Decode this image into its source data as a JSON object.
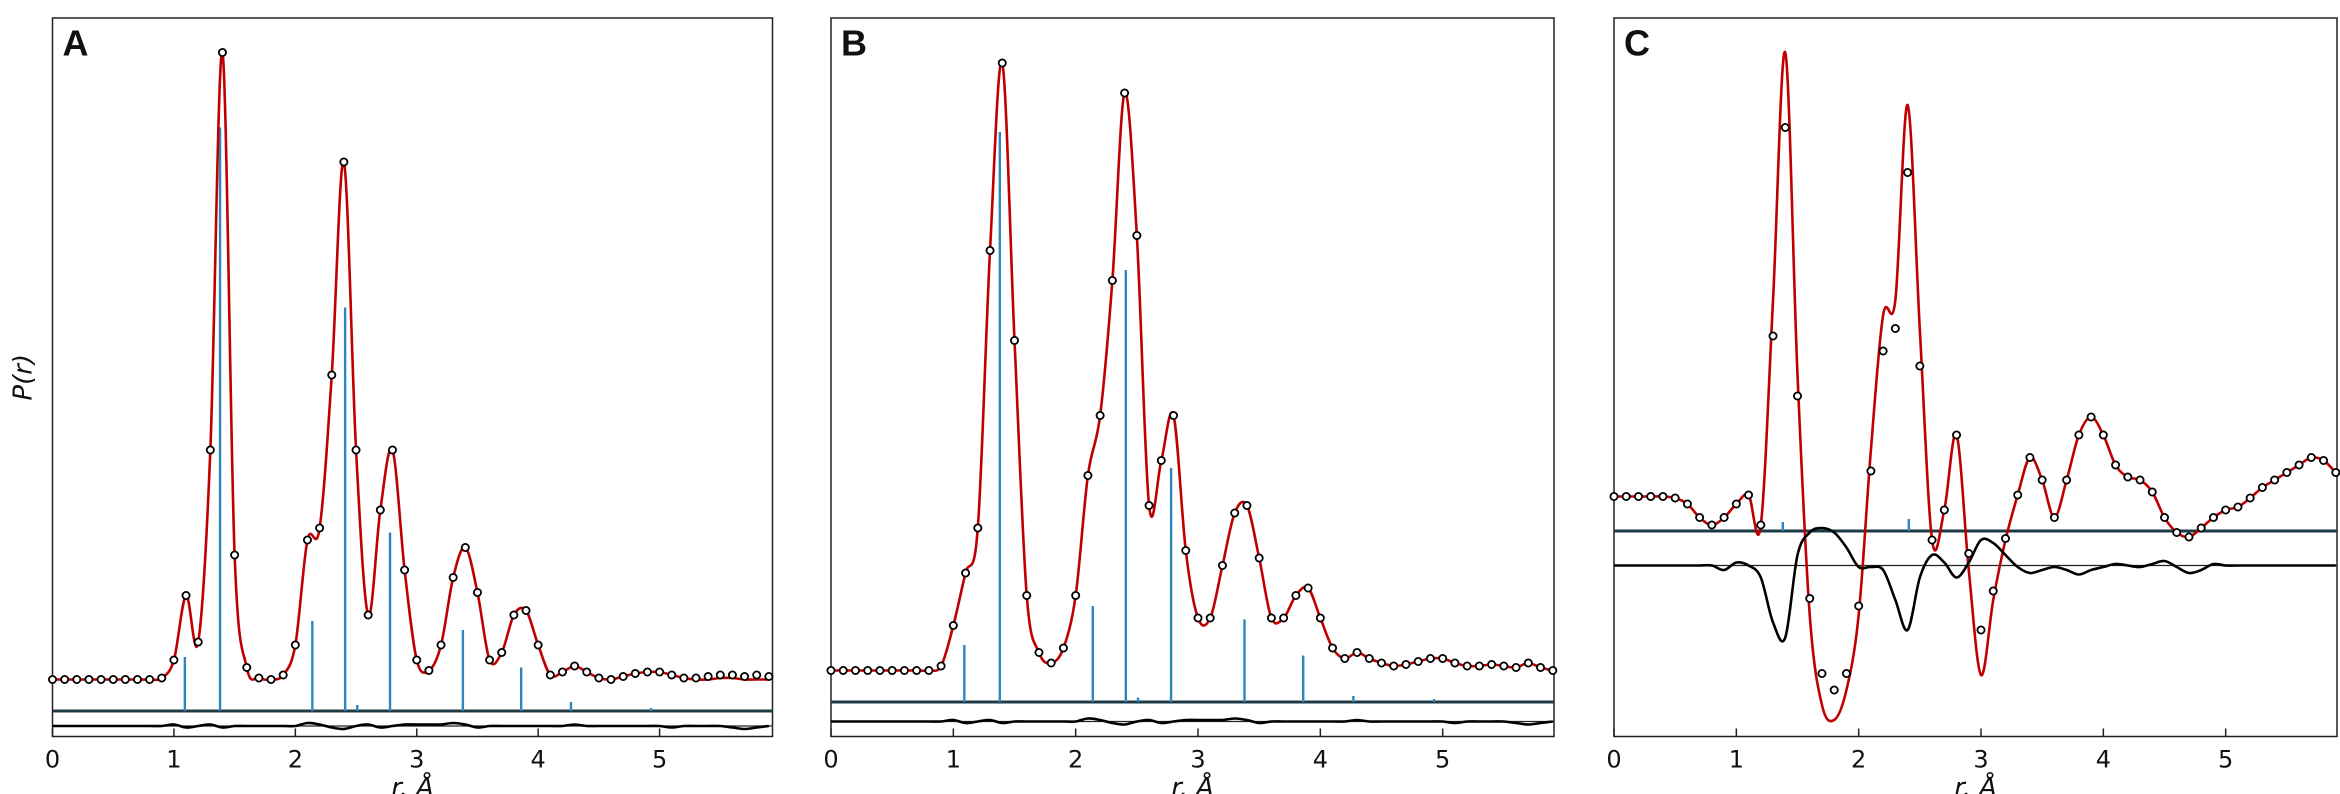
{
  "chart_data": [
    {
      "type": "line",
      "panel_label": "A",
      "xlabel": "r, Å",
      "ylabel": "P(r)",
      "xlim": [
        0,
        5.93
      ],
      "ylim": [
        -3.8,
        44.1
      ],
      "xticks": [
        0,
        1,
        2,
        3,
        4,
        5
      ],
      "x": [
        0,
        0.1,
        0.2,
        0.3,
        0.4,
        0.5,
        0.6,
        0.7,
        0.8,
        0.9,
        1,
        1.1,
        1.2,
        1.3,
        1.4,
        1.5,
        1.6,
        1.7,
        1.8,
        1.9,
        2,
        2.1,
        2.2,
        2.3,
        2.4,
        2.5,
        2.6,
        2.7,
        2.8,
        2.9,
        3,
        3.1,
        3.2,
        3.3,
        3.4,
        3.5,
        3.6,
        3.7,
        3.8,
        3.9,
        4,
        4.1,
        4.2,
        4.3,
        4.4,
        4.5,
        4.6,
        4.7,
        4.8,
        4.9,
        5,
        5.1,
        5.2,
        5.3,
        5.4,
        5.5,
        5.6,
        5.7,
        5.8,
        5.9
      ],
      "series": [
        {
          "style": "points",
          "color": "#000000",
          "values": [
            0,
            0,
            0,
            0,
            0,
            0,
            0,
            0,
            0,
            0.1,
            1.3,
            5.6,
            2.5,
            15.3,
            41.8,
            8.3,
            0.8,
            0.1,
            0,
            0.3,
            2.3,
            9.3,
            10.1,
            20.3,
            34.5,
            15.3,
            4.3,
            11.3,
            15.3,
            7.3,
            1.3,
            0.6,
            2.3,
            6.8,
            8.8,
            5.8,
            1.3,
            1.8,
            4.3,
            4.6,
            2.3,
            0.3,
            0.5,
            0.9,
            0.5,
            0.1,
            0,
            0.2,
            0.4,
            0.5,
            0.5,
            0.3,
            0.1,
            0.1,
            0.2,
            0.3,
            0.3,
            0.2,
            0.3,
            0.2
          ]
        },
        {
          "style": "line",
          "color": "#c00000",
          "values": [
            0,
            0,
            0,
            0,
            0,
            0,
            0,
            0,
            0,
            0.1,
            1.3,
            5.6,
            2.5,
            15.3,
            41.8,
            8.3,
            0.8,
            0.1,
            0,
            0.3,
            2.3,
            9.3,
            10.1,
            20.3,
            34.5,
            15.3,
            4.3,
            11.3,
            15.3,
            7.3,
            1.3,
            0.6,
            2.3,
            6.8,
            8.8,
            5.8,
            1.3,
            1.8,
            4.3,
            4.6,
            2.3,
            0.3,
            0.5,
            0.9,
            0.5,
            0.1,
            0,
            0.2,
            0.4,
            0.5,
            0.5,
            0.3,
            0.1,
            0,
            0,
            0.1,
            0.1,
            0,
            0,
            0
          ]
        },
        {
          "style": "line",
          "color": "#000000",
          "values": [
            -3.1,
            -3.1,
            -3.1,
            -3.1,
            -3.1,
            -3.1,
            -3.1,
            -3.1,
            -3.1,
            -3.1,
            -3.0,
            -3.2,
            -3.1,
            -3.0,
            -3.2,
            -3.1,
            -3.1,
            -3.1,
            -3.1,
            -3.1,
            -3.1,
            -2.9,
            -3.0,
            -3.2,
            -3.3,
            -3.1,
            -3.0,
            -3.2,
            -3.1,
            -3.0,
            -3.0,
            -3.0,
            -3.0,
            -2.9,
            -3.0,
            -3.2,
            -3.1,
            -3.1,
            -3.1,
            -3.1,
            -3.1,
            -3.1,
            -3.1,
            -3.0,
            -3.1,
            -3.1,
            -3.1,
            -3.1,
            -3.1,
            -3.1,
            -3.1,
            -3.2,
            -3.1,
            -3.1,
            -3.1,
            -3.1,
            -3.2,
            -3.3,
            -3.2,
            -3.1
          ]
        }
      ],
      "difference_baseline": -3.1,
      "sticks": {
        "color": "#2e86c1",
        "baseline": -2.1,
        "x": [
          1.09,
          1.38,
          2.14,
          2.41,
          2.51,
          2.78,
          3.38,
          3.86,
          4.27,
          4.93
        ],
        "values": [
          3.6,
          38.9,
          6.0,
          26.9,
          0.4,
          11.9,
          5.4,
          2.9,
          0.6,
          0.2
        ]
      }
    },
    {
      "type": "line",
      "panel_label": "B",
      "xlabel": "r, Å",
      "xlim": [
        0,
        5.91
      ],
      "ylim": [
        -4.4,
        43.5
      ],
      "xticks": [
        0,
        1,
        2,
        3,
        4,
        5
      ],
      "x": [
        0,
        0.1,
        0.2,
        0.3,
        0.4,
        0.5,
        0.6,
        0.7,
        0.8,
        0.9,
        1,
        1.1,
        1.2,
        1.3,
        1.4,
        1.5,
        1.6,
        1.7,
        1.8,
        1.9,
        2,
        2.1,
        2.2,
        2.3,
        2.4,
        2.5,
        2.6,
        2.7,
        2.8,
        2.9,
        3,
        3.1,
        3.2,
        3.3,
        3.4,
        3.5,
        3.6,
        3.7,
        3.8,
        3.9,
        4,
        4.1,
        4.2,
        4.3,
        4.4,
        4.5,
        4.6,
        4.7,
        4.8,
        4.9,
        5,
        5.1,
        5.2,
        5.3,
        5.4,
        5.5,
        5.6,
        5.7,
        5.8,
        5.9
      ],
      "series": [
        {
          "style": "points",
          "color": "#000000",
          "values": [
            0,
            0,
            0,
            0,
            0,
            0,
            0,
            0,
            0,
            0.3,
            3,
            6.5,
            9.5,
            28,
            40.5,
            22,
            5,
            1.2,
            0.5,
            1.5,
            5,
            13,
            17,
            26,
            38.5,
            29,
            11,
            14,
            17,
            8,
            3.5,
            3.5,
            7,
            10.5,
            11,
            7.5,
            3.5,
            3.5,
            5,
            5.5,
            3.5,
            1.5,
            0.8,
            1.2,
            0.8,
            0.5,
            0.3,
            0.4,
            0.6,
            0.8,
            0.8,
            0.5,
            0.3,
            0.3,
            0.4,
            0.3,
            0.2,
            0.5,
            0.2,
            0
          ]
        },
        {
          "style": "line",
          "color": "#c00000",
          "values": [
            0,
            0,
            0,
            0,
            0,
            0,
            0,
            0,
            0,
            0.3,
            3,
            6.5,
            9.5,
            28,
            40.5,
            22,
            5,
            1.2,
            0.5,
            1.5,
            5,
            13,
            17,
            26,
            38.5,
            29,
            11,
            14,
            17,
            8,
            3.5,
            3.5,
            7,
            10.5,
            11,
            7.5,
            3.5,
            3.5,
            5,
            5.5,
            3.5,
            1.5,
            0.8,
            1.2,
            0.8,
            0.5,
            0.3,
            0.4,
            0.6,
            0.8,
            0.8,
            0.5,
            0.3,
            0.3,
            0.4,
            0.3,
            0.2,
            0.5,
            0.2,
            0
          ]
        },
        {
          "style": "line",
          "color": "#000000",
          "values": [
            -3.4,
            -3.4,
            -3.4,
            -3.4,
            -3.4,
            -3.4,
            -3.4,
            -3.4,
            -3.4,
            -3.4,
            -3.3,
            -3.5,
            -3.4,
            -3.3,
            -3.5,
            -3.4,
            -3.4,
            -3.4,
            -3.4,
            -3.4,
            -3.4,
            -3.2,
            -3.3,
            -3.5,
            -3.6,
            -3.4,
            -3.3,
            -3.5,
            -3.4,
            -3.3,
            -3.3,
            -3.3,
            -3.3,
            -3.2,
            -3.3,
            -3.5,
            -3.4,
            -3.4,
            -3.4,
            -3.4,
            -3.4,
            -3.4,
            -3.4,
            -3.3,
            -3.4,
            -3.4,
            -3.4,
            -3.4,
            -3.4,
            -3.4,
            -3.4,
            -3.5,
            -3.4,
            -3.4,
            -3.4,
            -3.4,
            -3.5,
            -3.6,
            -3.5,
            -3.4
          ]
        }
      ],
      "difference_baseline": -3.4,
      "sticks": {
        "color": "#2e86c1",
        "baseline": -2.1,
        "x": [
          1.09,
          1.38,
          2.14,
          2.41,
          2.51,
          2.78,
          3.38,
          3.86,
          4.27,
          4.93
        ],
        "values": [
          3.8,
          38,
          6.4,
          28.8,
          0.3,
          15.6,
          5.5,
          3.1,
          0.4,
          0.2
        ]
      }
    },
    {
      "type": "line",
      "panel_label": "C",
      "xlabel": "r, Å",
      "xlim": [
        0,
        5.91
      ],
      "ylim": [
        -13.7,
        34.2
      ],
      "xticks": [
        0,
        1,
        2,
        3,
        4,
        5
      ],
      "x": [
        0,
        0.1,
        0.2,
        0.3,
        0.4,
        0.5,
        0.6,
        0.7,
        0.8,
        0.9,
        1,
        1.1,
        1.2,
        1.3,
        1.4,
        1.5,
        1.6,
        1.7,
        1.8,
        1.9,
        2,
        2.1,
        2.2,
        2.3,
        2.4,
        2.5,
        2.6,
        2.7,
        2.8,
        2.9,
        3,
        3.1,
        3.2,
        3.3,
        3.4,
        3.5,
        3.6,
        3.7,
        3.8,
        3.9,
        4,
        4.1,
        4.2,
        4.3,
        4.4,
        4.5,
        4.6,
        4.7,
        4.8,
        4.9,
        5,
        5.1,
        5.2,
        5.3,
        5.4,
        5.5,
        5.6,
        5.7,
        5.8,
        5.9
      ],
      "series": [
        {
          "style": "points",
          "color": "#000000",
          "values": [
            2.3,
            2.3,
            2.3,
            2.3,
            2.3,
            2.2,
            1.8,
            0.9,
            0.4,
            0.9,
            1.8,
            2.4,
            0.4,
            13,
            26.9,
            9,
            -4.5,
            -9.5,
            -10.6,
            -9.5,
            -5,
            4,
            12,
            13.5,
            23.9,
            11,
            -0.6,
            1.4,
            6.4,
            -1.5,
            -6.6,
            -4,
            -0.5,
            2.4,
            4.9,
            3.4,
            0.9,
            3.4,
            6.4,
            7.6,
            6.4,
            4.4,
            3.6,
            3.4,
            2.6,
            0.9,
            -0.1,
            -0.4,
            0.2,
            0.9,
            1.4,
            1.6,
            2.2,
            2.9,
            3.4,
            3.9,
            4.4,
            4.9,
            4.7,
            3.9
          ]
        },
        {
          "style": "line",
          "color": "#c00000",
          "values": [
            2.3,
            2.3,
            2.3,
            2.3,
            2.3,
            2.2,
            1.8,
            0.9,
            0.4,
            0.9,
            1.8,
            2.4,
            0.4,
            15.4,
            31.9,
            10.4,
            -5.6,
            -11.6,
            -12.6,
            -10.6,
            -5.6,
            5.4,
            14.4,
            15.4,
            28.4,
            13.4,
            -0.6,
            1.4,
            6.4,
            -2.6,
            -9.6,
            -4.6,
            -0.6,
            2.4,
            4.9,
            3.4,
            0.9,
            3.4,
            6.4,
            7.6,
            6.4,
            4.4,
            3.6,
            3.4,
            2.6,
            0.9,
            -0.1,
            -0.4,
            0.2,
            0.9,
            1.4,
            1.6,
            2.2,
            2.9,
            3.4,
            3.9,
            4.4,
            4.9,
            4.7,
            3.9
          ]
        },
        {
          "style": "line",
          "color": "#000000",
          "values": [
            -2.3,
            -2.3,
            -2.3,
            -2.3,
            -2.3,
            -2.3,
            -2.3,
            -2.3,
            -2.3,
            -2.6,
            -2.1,
            -2.3,
            -3.1,
            -6.1,
            -7.1,
            -1.6,
            -0.1,
            0.2,
            -0.1,
            -1.1,
            -2.4,
            -2.4,
            -2.6,
            -4.6,
            -6.6,
            -3.1,
            -1.6,
            -2.1,
            -3.1,
            -2.1,
            -0.6,
            -0.8,
            -1.6,
            -2.4,
            -2.8,
            -2.6,
            -2.4,
            -2.6,
            -2.9,
            -2.6,
            -2.4,
            -2.2,
            -2.3,
            -2.4,
            -2.2,
            -2.0,
            -2.4,
            -2.8,
            -2.6,
            -2.2,
            -2.3,
            -2.3,
            -2.3,
            -2.3,
            -2.3,
            -2.3,
            -2.3,
            -2.3,
            -2.3,
            -2.3
          ]
        }
      ],
      "difference_baseline": -2.3,
      "sticks": {
        "color": "#2e86c1",
        "baseline": 0,
        "x": [
          1.38,
          2.41
        ],
        "values": [
          0.6,
          0.8
        ]
      }
    }
  ]
}
